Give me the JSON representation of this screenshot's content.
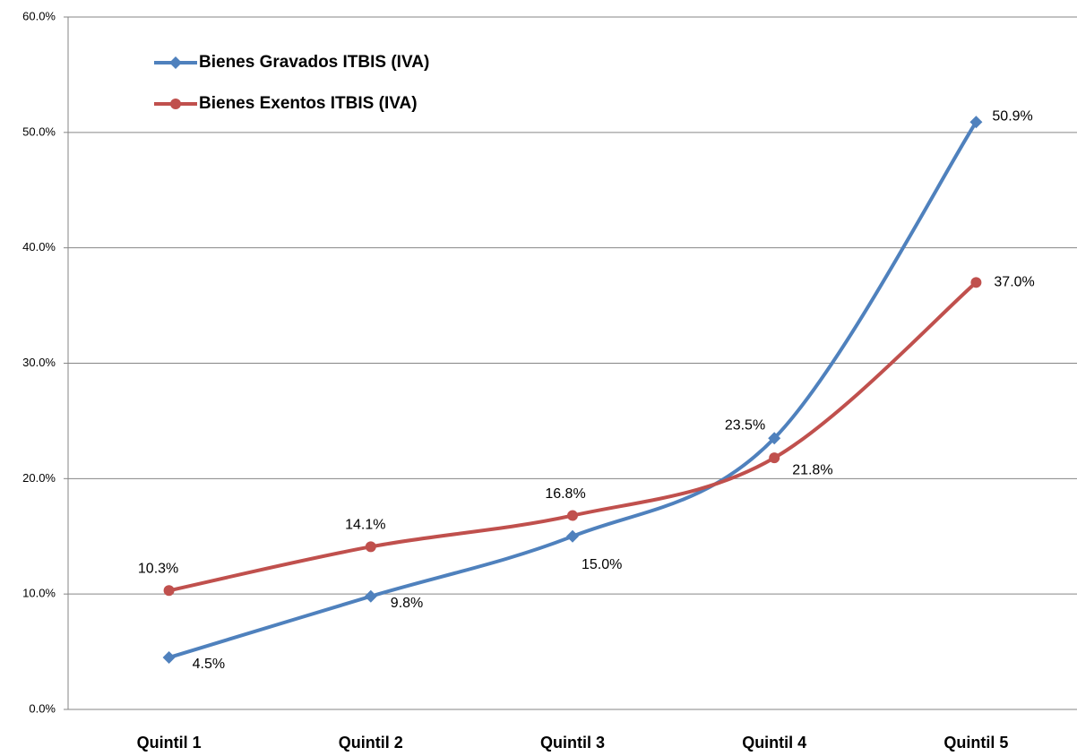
{
  "chart_data": {
    "type": "line",
    "categories": [
      "Quintil 1",
      "Quintil 2",
      "Quintil 3",
      "Quintil 4",
      "Quintil 5"
    ],
    "series": [
      {
        "name": "Bienes Gravados ITBIS (IVA)",
        "color": "#4f81bd",
        "marker": "diamond",
        "values": [
          4.5,
          9.8,
          15.0,
          23.5,
          50.9
        ],
        "value_labels": [
          "4.5%",
          "9.8%",
          "15.0%",
          "23.5%",
          "50.9%"
        ]
      },
      {
        "name": "Bienes Exentos ITBIS (IVA)",
        "color": "#c0504d",
        "marker": "circle",
        "values": [
          10.3,
          14.1,
          16.8,
          21.8,
          37.0
        ],
        "value_labels": [
          "10.3%",
          "14.1%",
          "16.8%",
          "21.8%",
          "37.0%"
        ]
      }
    ],
    "ylim": [
      0,
      60
    ],
    "yticks": [
      {
        "value": 0,
        "label": "0.0%"
      },
      {
        "value": 10,
        "label": "10.0%"
      },
      {
        "value": 20,
        "label": "20.0%"
      },
      {
        "value": 30,
        "label": "30.0%"
      },
      {
        "value": 40,
        "label": "40.0%"
      },
      {
        "value": 50,
        "label": "50.0%"
      },
      {
        "value": 60,
        "label": "60.0%"
      }
    ],
    "grid": true,
    "smooth": true,
    "legend": "upper left"
  }
}
